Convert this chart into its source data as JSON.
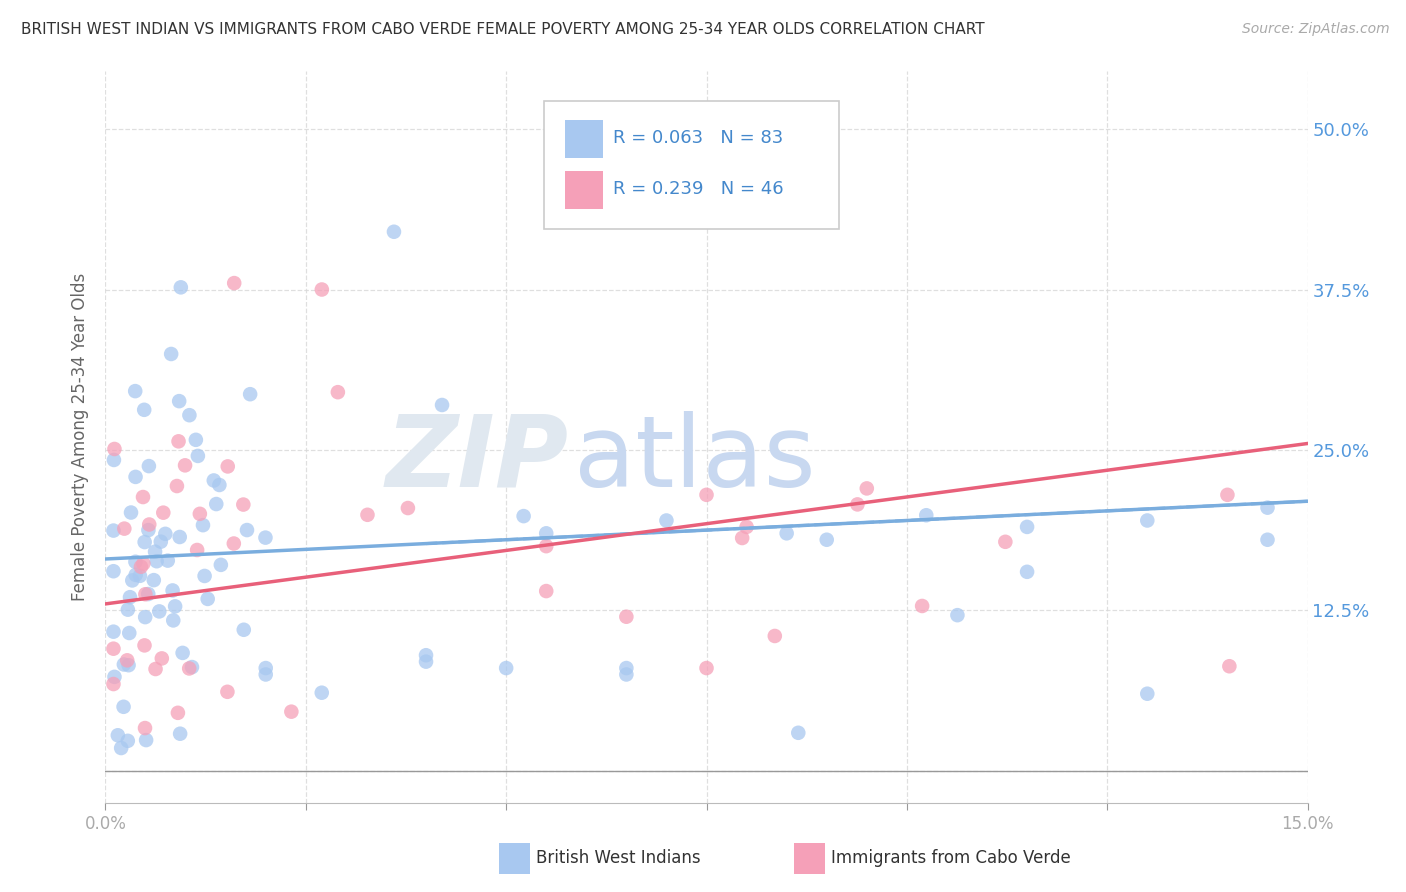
{
  "title": "BRITISH WEST INDIAN VS IMMIGRANTS FROM CABO VERDE FEMALE POVERTY AMONG 25-34 YEAR OLDS CORRELATION CHART",
  "source": "Source: ZipAtlas.com",
  "ylabel": "Female Poverty Among 25-34 Year Olds",
  "xlim": [
    0.0,
    0.15
  ],
  "ylim": [
    -0.025,
    0.545
  ],
  "x_tick_positions": [
    0.0,
    0.025,
    0.05,
    0.075,
    0.1,
    0.125,
    0.15
  ],
  "x_tick_labels": [
    "0.0%",
    "",
    "",
    "",
    "",
    "",
    "15.0%"
  ],
  "y_tick_positions": [
    0.0,
    0.125,
    0.25,
    0.375,
    0.5
  ],
  "y_tick_labels_right": [
    "",
    "12.5%",
    "25.0%",
    "37.5%",
    "50.0%"
  ],
  "legend1_R": "0.063",
  "legend1_N": "83",
  "legend2_R": "0.239",
  "legend2_N": "46",
  "color_blue": "#a8c8f0",
  "color_pink": "#f5a0b8",
  "color_blue_line": "#7aadde",
  "color_pink_line": "#e8607a",
  "color_text_blue": "#4488cc",
  "blue_trend": [
    0.165,
    0.21
  ],
  "pink_trend": [
    0.13,
    0.255
  ],
  "watermark_color": "#e0e8f0",
  "watermark_color2": "#c8d8f0",
  "grid_color": "#d8d8d8",
  "title_color": "#333333",
  "ylabel_color": "#666666",
  "tick_color": "#aaaaaa",
  "right_tick_color": "#5599dd"
}
